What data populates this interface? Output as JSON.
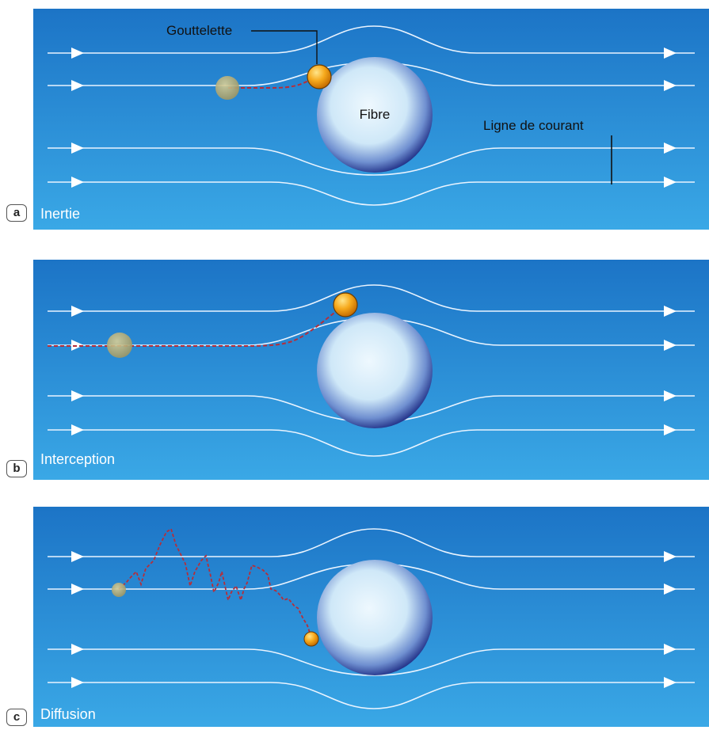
{
  "panels": [
    {
      "letter": "a",
      "caption": "Inertie",
      "fibre_label": "Fibre",
      "droplet_label": "Gouttelette",
      "streamline_label": "Ligne de courant"
    },
    {
      "letter": "b",
      "caption": "Interception"
    },
    {
      "letter": "c",
      "caption": "Diffusion"
    }
  ],
  "colors": {
    "background_top": "#1e78c8",
    "background_bottom": "#3aa6e4",
    "streamline": "#eaf4ff",
    "fibre_center": "#e8f5fd",
    "fibre_edge": "#21328a",
    "droplet": "#f3a51b",
    "droplet_ghost": "#b5a562",
    "path": "#b52e3a"
  }
}
